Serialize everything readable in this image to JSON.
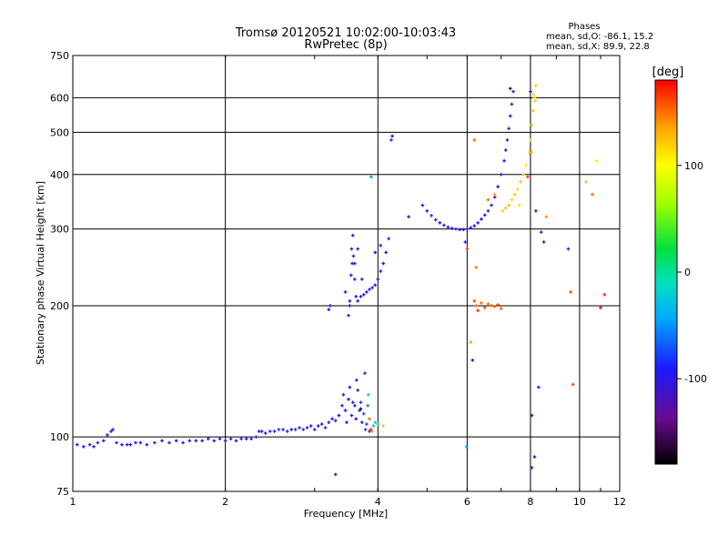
{
  "chart_data": {
    "type": "scatter",
    "title": "Tromsø 20120521 10:02:00-10:03:43",
    "subtitle": "RwPretec (8p)",
    "xlabel": "Frequency [MHz]",
    "ylabel": "Stationary phase Virtual Height [km]",
    "x_scale": "log",
    "y_scale": "log",
    "xlim": [
      1,
      12
    ],
    "ylim": [
      75,
      750
    ],
    "x_ticks": [
      {
        "value": 1,
        "label": "1"
      },
      {
        "value": 2,
        "label": "2"
      },
      {
        "value": 4,
        "label": "4"
      },
      {
        "value": 6,
        "label": "6"
      },
      {
        "value": 8,
        "label": "8"
      },
      {
        "value": 10,
        "label": "10"
      },
      {
        "value": 12,
        "label": "12"
      }
    ],
    "y_ticks": [
      {
        "value": 75,
        "label": "75"
      },
      {
        "value": 100,
        "label": "100"
      },
      {
        "value": 200,
        "label": "200"
      },
      {
        "value": 300,
        "label": "300"
      },
      {
        "value": 400,
        "label": "400"
      },
      {
        "value": 500,
        "label": "500"
      },
      {
        "value": 600,
        "label": "600"
      },
      {
        "value": 750,
        "label": "750"
      }
    ],
    "grid": true,
    "stats": {
      "heading": "Phases",
      "line1": "mean, sd,O: -86.1, 15.2",
      "line2": "mean, sd,X:  89.9, 22.8"
    },
    "colorbar": {
      "label": "[deg]",
      "min": -180,
      "max": 180,
      "ticks": [
        {
          "value": 100,
          "label": "100"
        },
        {
          "value": 0,
          "label": "0"
        },
        {
          "value": -100,
          "label": "-100"
        }
      ]
    },
    "series": [
      {
        "points": [
          [
            1.02,
            96,
            -95
          ],
          [
            1.05,
            95,
            -92
          ],
          [
            1.08,
            96,
            -98
          ],
          [
            1.1,
            95,
            -90
          ],
          [
            1.12,
            97,
            -96
          ],
          [
            1.15,
            98,
            -100
          ],
          [
            1.17,
            101,
            -105
          ],
          [
            1.19,
            103,
            -95
          ],
          [
            1.2,
            104,
            -110
          ],
          [
            1.22,
            97,
            -93
          ],
          [
            1.25,
            96,
            -95
          ],
          [
            1.28,
            96,
            -92
          ],
          [
            1.3,
            96,
            -90
          ],
          [
            1.33,
            97,
            -95
          ],
          [
            1.36,
            97,
            -98
          ],
          [
            1.4,
            96,
            -92
          ],
          [
            1.45,
            97,
            -100
          ],
          [
            1.5,
            98,
            -96
          ],
          [
            1.55,
            97,
            -94
          ],
          [
            1.6,
            98,
            -99
          ],
          [
            1.65,
            97,
            -92
          ],
          [
            1.7,
            98,
            -95
          ],
          [
            1.75,
            98,
            -97
          ],
          [
            1.8,
            98,
            -101
          ],
          [
            1.85,
            99,
            -94
          ],
          [
            1.9,
            98,
            -96
          ],
          [
            1.95,
            99,
            -92
          ],
          [
            2.0,
            98,
            -95
          ],
          [
            2.05,
            99,
            -98
          ],
          [
            2.1,
            98,
            -90
          ],
          [
            2.15,
            99,
            -93
          ],
          [
            2.2,
            99,
            -96
          ],
          [
            2.25,
            99,
            -94
          ],
          [
            2.3,
            100,
            -100
          ],
          [
            2.33,
            103,
            -98
          ],
          [
            2.36,
            103,
            -92
          ],
          [
            2.4,
            102,
            -96
          ],
          [
            2.45,
            103,
            -88
          ],
          [
            2.5,
            103,
            -90
          ],
          [
            2.55,
            104,
            -85
          ],
          [
            2.6,
            104,
            -92
          ],
          [
            2.65,
            103,
            -88
          ],
          [
            2.7,
            104,
            -95
          ],
          [
            2.75,
            104,
            -86
          ],
          [
            2.8,
            105,
            -90
          ],
          [
            2.85,
            104,
            -84
          ],
          [
            2.9,
            105,
            -96
          ],
          [
            2.95,
            106,
            -100
          ],
          [
            3.0,
            104,
            -98
          ],
          [
            3.05,
            106,
            -102
          ],
          [
            3.1,
            107,
            -105
          ],
          [
            3.15,
            105,
            -96
          ],
          [
            3.2,
            108,
            -100
          ],
          [
            3.25,
            110,
            -90
          ],
          [
            3.3,
            109,
            -103
          ],
          [
            3.35,
            112,
            -95
          ],
          [
            3.4,
            118,
            -100
          ],
          [
            3.42,
            125,
            -108
          ],
          [
            3.45,
            115,
            -96
          ],
          [
            3.47,
            108,
            -92
          ],
          [
            3.5,
            122,
            -100
          ],
          [
            3.52,
            130,
            -98
          ],
          [
            3.55,
            112,
            -104
          ],
          [
            3.57,
            120,
            -95
          ],
          [
            3.6,
            118,
            -88
          ],
          [
            3.62,
            110,
            -96
          ],
          [
            3.65,
            128,
            -100
          ],
          [
            3.68,
            115,
            -86
          ],
          [
            3.7,
            120,
            -80
          ],
          [
            3.72,
            108,
            -90
          ],
          [
            3.75,
            113,
            -70
          ],
          [
            3.78,
            104,
            -82
          ],
          [
            3.8,
            107,
            -75
          ],
          [
            3.82,
            118,
            -60
          ],
          [
            3.85,
            103,
            -95
          ],
          [
            3.88,
            104,
            -40
          ],
          [
            3.92,
            106,
            -30
          ],
          [
            3.95,
            108,
            -20
          ],
          [
            4.0,
            107,
            -10
          ],
          [
            4.1,
            106,
            125
          ],
          [
            3.85,
            110,
            150
          ],
          [
            3.9,
            103,
            140
          ],
          [
            3.87,
            104,
            165
          ],
          [
            3.77,
            140,
            -100
          ],
          [
            3.7,
            116,
            -160
          ],
          [
            3.3,
            82,
            -105
          ],
          [
            3.83,
            125,
            -20
          ],
          [
            3.63,
            135,
            -100
          ],
          [
            3.5,
            190,
            -100
          ],
          [
            3.52,
            205,
            -98
          ],
          [
            3.54,
            235,
            -96
          ],
          [
            3.55,
            270,
            -100
          ],
          [
            3.57,
            290,
            -95
          ],
          [
            3.58,
            260,
            -98
          ],
          [
            3.6,
            230,
            -102
          ],
          [
            3.62,
            210,
            -96
          ],
          [
            3.65,
            205,
            -100
          ],
          [
            3.7,
            210,
            -96
          ],
          [
            3.75,
            212,
            -95
          ],
          [
            3.8,
            215,
            -98
          ],
          [
            3.85,
            218,
            -94
          ],
          [
            3.9,
            220,
            -100
          ],
          [
            3.95,
            223,
            -96
          ],
          [
            4.0,
            230,
            -95
          ],
          [
            4.05,
            240,
            -98
          ],
          [
            4.1,
            250,
            -96
          ],
          [
            4.15,
            265,
            -95
          ],
          [
            4.2,
            285,
            -100
          ],
          [
            3.52,
            200,
            -110
          ],
          [
            3.56,
            250,
            -100
          ],
          [
            3.6,
            250,
            -92
          ],
          [
            3.45,
            215,
            -98
          ],
          [
            3.72,
            230,
            -100
          ],
          [
            3.65,
            270,
            -96
          ],
          [
            3.95,
            265,
            -98
          ],
          [
            4.05,
            275,
            -95
          ],
          [
            4.25,
            480,
            -95
          ],
          [
            4.27,
            490,
            -98
          ],
          [
            3.88,
            395,
            -50
          ],
          [
            3.2,
            196,
            -98
          ],
          [
            3.22,
            200,
            -100
          ],
          [
            4.9,
            340,
            -100
          ],
          [
            5.0,
            330,
            -98
          ],
          [
            5.1,
            322,
            -96
          ],
          [
            5.2,
            315,
            -100
          ],
          [
            5.3,
            310,
            -98
          ],
          [
            5.4,
            306,
            -95
          ],
          [
            5.5,
            303,
            -98
          ],
          [
            5.6,
            301,
            -96
          ],
          [
            5.7,
            300,
            -100
          ],
          [
            5.8,
            299,
            -98
          ],
          [
            5.9,
            299,
            -95
          ],
          [
            6.0,
            300,
            -98
          ],
          [
            6.1,
            302,
            -96
          ],
          [
            6.2,
            305,
            -100
          ],
          [
            6.3,
            310,
            -95
          ],
          [
            6.4,
            316,
            -98
          ],
          [
            6.5,
            323,
            -96
          ],
          [
            6.6,
            330,
            -100
          ],
          [
            6.7,
            340,
            -95
          ],
          [
            6.8,
            355,
            -92
          ],
          [
            6.9,
            375,
            -95
          ],
          [
            7.0,
            400,
            -98
          ],
          [
            7.1,
            430,
            -96
          ],
          [
            7.15,
            455,
            -95
          ],
          [
            7.2,
            480,
            -98
          ],
          [
            7.25,
            510,
            -96
          ],
          [
            7.3,
            545,
            -92
          ],
          [
            7.35,
            580,
            -95
          ],
          [
            7.4,
            620,
            -98
          ],
          [
            7.3,
            630,
            -160
          ],
          [
            4.6,
            320,
            -100
          ],
          [
            6.2,
            480,
            150
          ],
          [
            5.95,
            280,
            -100
          ],
          [
            5.98,
            95,
            -40
          ],
          [
            7.05,
            330,
            120
          ],
          [
            7.15,
            335,
            125
          ],
          [
            7.25,
            340,
            130
          ],
          [
            7.35,
            350,
            118
          ],
          [
            7.45,
            360,
            122
          ],
          [
            7.55,
            370,
            115
          ],
          [
            7.65,
            385,
            120
          ],
          [
            7.75,
            400,
            125
          ],
          [
            7.85,
            420,
            110
          ],
          [
            7.95,
            450,
            115
          ],
          [
            8.0,
            480,
            120
          ],
          [
            8.05,
            520,
            118
          ],
          [
            8.1,
            560,
            122
          ],
          [
            8.15,
            600,
            115
          ],
          [
            8.2,
            640,
            120
          ],
          [
            8.12,
            610,
            112
          ],
          [
            8.18,
            590,
            118
          ],
          [
            8.05,
            450,
            120
          ],
          [
            7.9,
            395,
            165
          ],
          [
            7.6,
            340,
            112
          ],
          [
            6.2,
            205,
            160
          ],
          [
            6.25,
            200,
            150
          ],
          [
            6.4,
            203,
            155
          ],
          [
            6.5,
            198,
            160
          ],
          [
            6.6,
            202,
            150
          ],
          [
            6.7,
            200,
            158
          ],
          [
            6.8,
            199,
            145
          ],
          [
            6.9,
            201,
            160
          ],
          [
            7.0,
            197,
            155
          ],
          [
            6.3,
            195,
            170
          ],
          [
            6.1,
            165,
            135
          ],
          [
            6.15,
            150,
            -110
          ],
          [
            8.05,
            112,
            -140
          ],
          [
            8.15,
            90,
            -105
          ],
          [
            8.3,
            130,
            -90
          ],
          [
            8.4,
            295,
            -110
          ],
          [
            8.5,
            280,
            -120
          ],
          [
            8.6,
            320,
            140
          ],
          [
            9.5,
            270,
            -120
          ],
          [
            9.6,
            215,
            160
          ],
          [
            9.7,
            132,
            160
          ],
          [
            10.3,
            385,
            125
          ],
          [
            10.6,
            360,
            150
          ],
          [
            10.8,
            430,
            110
          ],
          [
            11.0,
            198,
            180
          ],
          [
            11.2,
            212,
            170
          ],
          [
            8.0,
            620,
            -150
          ],
          [
            6.6,
            350,
            150
          ],
          [
            6.8,
            360,
            140
          ],
          [
            8.2,
            330,
            -140
          ],
          [
            8.05,
            85,
            -110
          ],
          [
            6.0,
            270,
            165
          ],
          [
            6.25,
            245,
            150
          ]
        ]
      }
    ]
  }
}
